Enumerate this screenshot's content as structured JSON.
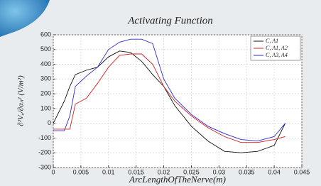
{
  "chart_data": {
    "type": "line",
    "title": "Activating Function",
    "x_label": "ArcLengthOfTheNerve(m)",
    "y_label": "∂²Vₑ/∂αₙ² (V/m²)",
    "x": [
      0,
      0.002,
      0.003,
      0.004,
      0.006,
      0.008,
      0.01,
      0.012,
      0.014,
      0.016,
      0.018,
      0.02,
      0.022,
      0.025,
      0.028,
      0.031,
      0.034,
      0.037,
      0.04,
      0.042
    ],
    "series": [
      {
        "name": "C, A1",
        "color": "#111111",
        "values": [
          0,
          150,
          250,
          330,
          360,
          380,
          450,
          490,
          480,
          420,
          330,
          250,
          120,
          -20,
          -120,
          -190,
          -200,
          -190,
          -150,
          0
        ]
      },
      {
        "name": "C, A1, A2",
        "color": "#d42020",
        "values": [
          -40,
          -40,
          -40,
          130,
          170,
          270,
          380,
          460,
          470,
          470,
          400,
          250,
          150,
          50,
          -30,
          -90,
          -130,
          -130,
          -110,
          -90
        ]
      },
      {
        "name": "C, A3, A4",
        "color": "#2a2ad0",
        "values": [
          -50,
          -50,
          50,
          250,
          320,
          380,
          500,
          550,
          570,
          570,
          540,
          300,
          170,
          60,
          -20,
          -70,
          -110,
          -120,
          -90,
          0
        ]
      }
    ],
    "xlim": [
      0,
      0.045
    ],
    "xticks": [
      0,
      0.005,
      0.01,
      0.015,
      0.02,
      0.025,
      0.03,
      0.035,
      0.04,
      0.045
    ],
    "ylim": [
      -300,
      600
    ],
    "yticks": [
      -300,
      -200,
      -100,
      0,
      100,
      200,
      300,
      400,
      500,
      600
    ],
    "grid": true,
    "legend": "upper right"
  }
}
